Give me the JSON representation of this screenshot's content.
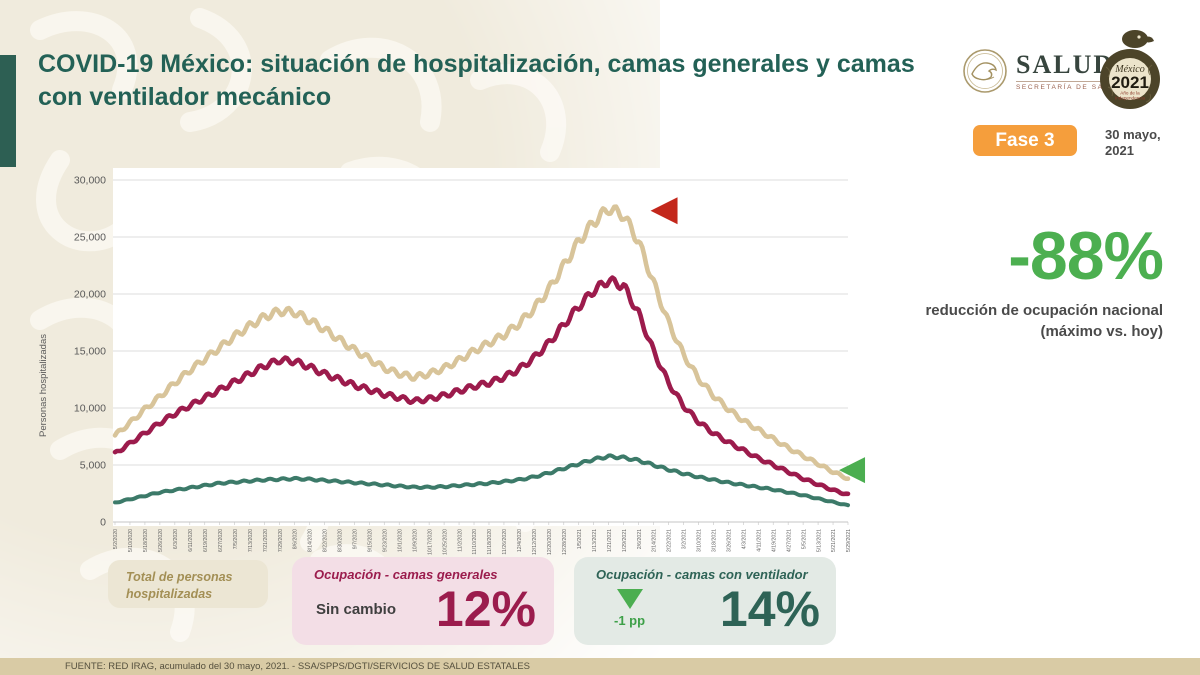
{
  "header": {
    "title": "COVID-19 México: situación de hospitalización, camas generales y camas con ventilador mecánico",
    "phase_badge": "Fase 3",
    "date": "30 mayo, 2021",
    "date_line1": "30 mayo,",
    "date_line2": "2021",
    "salud_logo": {
      "name": "SALUD",
      "subtitle": "SECRETARÍA DE SALUD"
    },
    "mexico_logo": {
      "line1": "México",
      "line2": "2021",
      "line3": "Año de la",
      "line4": "Independencia"
    }
  },
  "chart_data": {
    "type": "line",
    "title": "",
    "xlabel": "",
    "ylabel": "Personas hospitalizadas",
    "ylim": [
      0,
      30000
    ],
    "y_ticks": [
      0,
      5000,
      10000,
      15000,
      20000,
      25000,
      30000
    ],
    "grid": true,
    "legend": "none",
    "categories": [
      "5/2/2020",
      "5/10/2020",
      "5/18/2020",
      "5/26/2020",
      "6/3/2020",
      "6/11/2020",
      "6/19/2020",
      "6/27/2020",
      "7/5/2020",
      "7/13/2020",
      "7/21/2020",
      "7/29/2020",
      "8/6/2020",
      "8/14/2020",
      "8/22/2020",
      "8/30/2020",
      "9/7/2020",
      "9/15/2020",
      "9/23/2020",
      "10/1/2020",
      "10/9/2020",
      "10/17/2020",
      "10/25/2020",
      "11/2/2020",
      "11/10/2020",
      "11/18/2020",
      "11/26/2020",
      "12/4/2020",
      "12/12/2020",
      "12/20/2020",
      "12/28/2020",
      "1/5/2021",
      "1/13/2021",
      "1/21/2021",
      "1/29/2021",
      "2/6/2021",
      "2/14/2021",
      "2/22/2021",
      "3/2/2021",
      "3/10/2021",
      "3/18/2021",
      "3/26/2021",
      "4/3/2021",
      "4/11/2021",
      "4/19/2021",
      "4/27/2021",
      "5/5/2021",
      "5/13/2021",
      "5/21/2021",
      "5/29/2021"
    ],
    "series": [
      {
        "name": "Total de personas hospitalizadas",
        "color": "#d8c49a",
        "width": 4.6,
        "values": [
          7600,
          8700,
          9900,
          11000,
          12200,
          13300,
          14300,
          15300,
          16300,
          17200,
          18000,
          18500,
          18400,
          17700,
          16900,
          16000,
          15100,
          14300,
          13500,
          13000,
          12700,
          13000,
          13500,
          14200,
          15000,
          15700,
          16400,
          17400,
          18700,
          20400,
          22500,
          24600,
          26300,
          27500,
          26900,
          24600,
          21000,
          17500,
          14700,
          12600,
          11100,
          9900,
          8900,
          8100,
          7300,
          6500,
          5800,
          5100,
          4400,
          3800
        ]
      },
      {
        "name": "Ocupación - camas generales",
        "color": "#9c1b4c",
        "width": 4.6,
        "values": [
          6000,
          6900,
          7800,
          8700,
          9500,
          10200,
          10900,
          11600,
          12300,
          13000,
          13700,
          14200,
          14100,
          13600,
          13000,
          12500,
          12000,
          11600,
          11200,
          10900,
          10600,
          10800,
          11100,
          11500,
          11900,
          12200,
          12700,
          13400,
          14400,
          15700,
          17300,
          18900,
          20300,
          21200,
          20700,
          18300,
          15000,
          12200,
          10200,
          8800,
          7800,
          7000,
          6300,
          5600,
          5000,
          4400,
          3800,
          3300,
          2800,
          2400
        ]
      },
      {
        "name": "Ocupación - camas con ventilador",
        "color": "#3c7a69",
        "width": 4.0,
        "values": [
          1700,
          2000,
          2300,
          2600,
          2800,
          3000,
          3200,
          3400,
          3500,
          3600,
          3700,
          3750,
          3800,
          3750,
          3650,
          3550,
          3450,
          3350,
          3250,
          3150,
          3050,
          3050,
          3100,
          3200,
          3300,
          3400,
          3550,
          3700,
          3950,
          4300,
          4700,
          5100,
          5500,
          5750,
          5650,
          5400,
          5000,
          4600,
          4250,
          3950,
          3700,
          3450,
          3250,
          3050,
          2850,
          2600,
          2350,
          2050,
          1750,
          1450
        ]
      }
    ],
    "annotations": [
      {
        "type": "triangle-left",
        "color": "#c3271b",
        "x_index": 35.8,
        "value": 27300,
        "size": 27
      },
      {
        "type": "triangle-left",
        "color": "#4bae50",
        "x_index": 48.4,
        "value": 4550,
        "size": 26
      }
    ]
  },
  "stat": {
    "value": "-88%",
    "color": "#4caf50",
    "caption_line1": "reducción de ocupación nacional",
    "caption_line2": "(máximo vs. hoy)"
  },
  "summary_boxes": {
    "total": {
      "label": "Total de personas hospitalizadas"
    },
    "general": {
      "label": "Ocupación - camas generales",
      "change": "Sin cambio",
      "value": "12%"
    },
    "ventilator": {
      "label": "Ocupación - camas con ventilador",
      "change": "-1 pp",
      "value": "14%"
    }
  },
  "footer": {
    "source": "FUENTE: RED IRAG, acumulado del 30 mayo, 2021. -  SSA/SPPS/DGTI/SERVICIOS DE SALUD ESTATALES"
  }
}
